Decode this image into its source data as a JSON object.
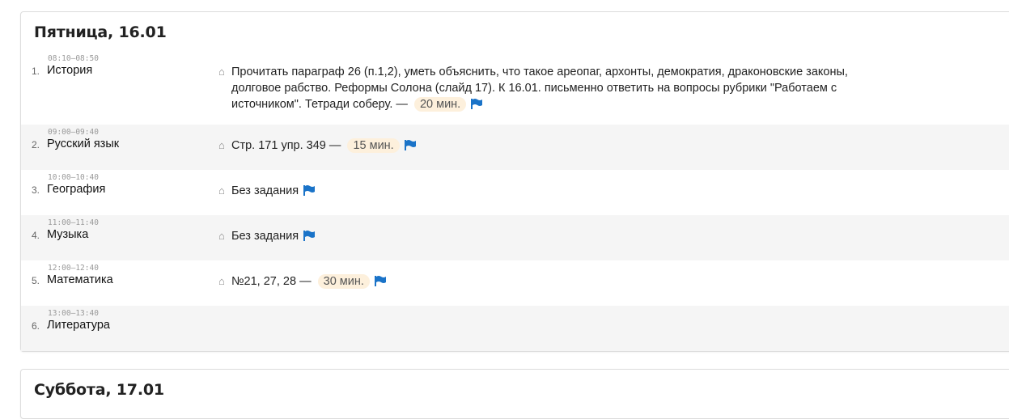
{
  "days": [
    {
      "title": "Пятница, 16.01",
      "lessons": [
        {
          "num": "1.",
          "time": "08:10–08:50",
          "subject": "История",
          "homework": "Прочитать параграф 26 (п.1,2), уметь объяснить, что такое ареопаг, архонты, демократия, драконовские законы, долговое рабство. Реформы Солона (слайд 17). К 16.01. письменно ответить на вопросы рубрики \"Работаем с источником\". Тетради соберу.",
          "duration": "20 мин."
        },
        {
          "num": "2.",
          "time": "09:00–09:40",
          "subject": "Русский язык",
          "homework": "Стр. 171 упр. 349",
          "duration": "15 мин."
        },
        {
          "num": "3.",
          "time": "10:00–10:40",
          "subject": "География",
          "homework": "Без задания",
          "duration": ""
        },
        {
          "num": "4.",
          "time": "11:00–11:40",
          "subject": "Музыка",
          "homework": "Без задания",
          "duration": ""
        },
        {
          "num": "5.",
          "time": "12:00–12:40",
          "subject": "Математика",
          "homework": "№21, 27, 28",
          "duration": "30 мин."
        },
        {
          "num": "6.",
          "time": "13:00–13:40",
          "subject": "Литература",
          "homework": "",
          "duration": ""
        }
      ]
    },
    {
      "title": "Суббота, 17.01"
    }
  ],
  "dash": "—",
  "colors": {
    "flag": "#1a73c8",
    "duration_bg": "#fdf0dc",
    "row_alt": "#f5f5f5"
  }
}
